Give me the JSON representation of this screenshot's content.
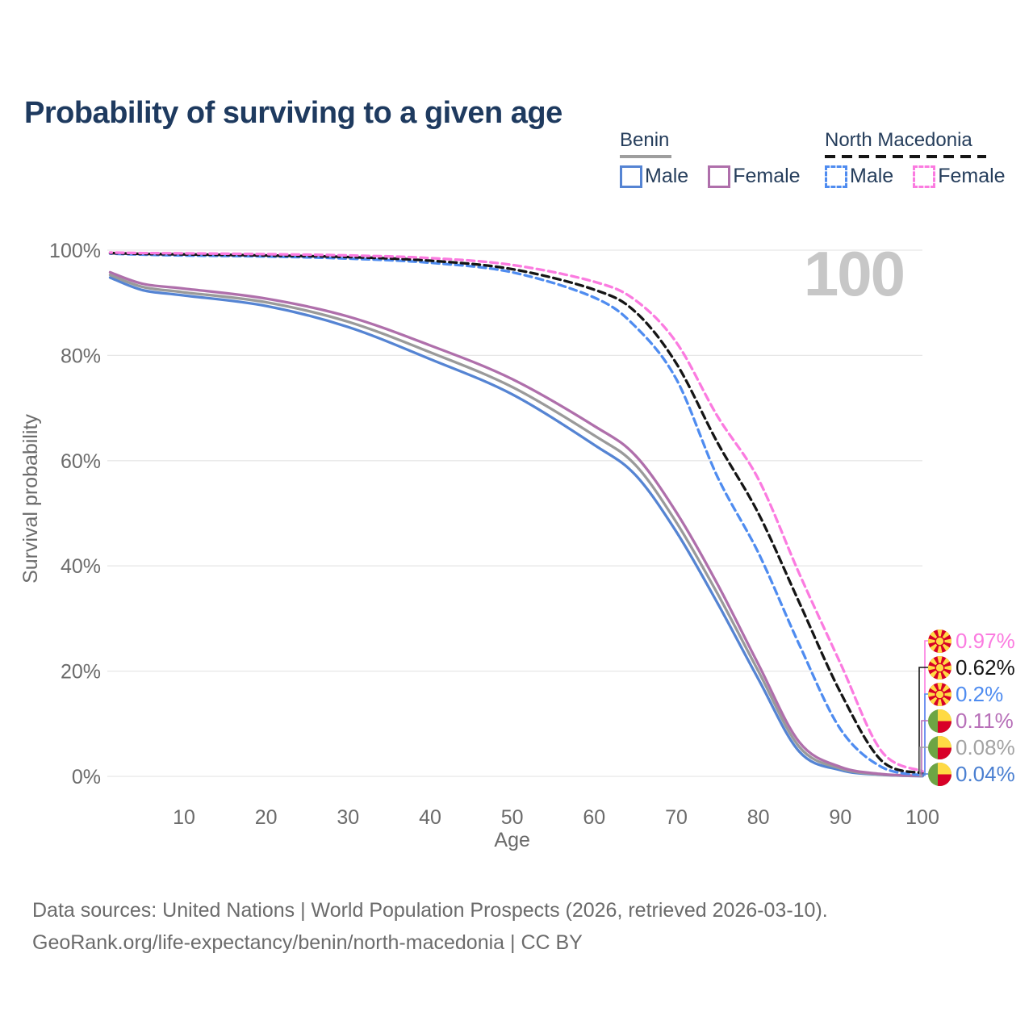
{
  "page": {
    "title": "Probability of surviving to a given age"
  },
  "legend": {
    "groups": [
      {
        "id": "benin",
        "title": "Benin",
        "line_style": "solid",
        "underline_color": "#9e9e9e",
        "items": [
          {
            "label": "Male",
            "color": "#5584d3"
          },
          {
            "label": "Female",
            "color": "#af6fab"
          }
        ]
      },
      {
        "id": "north-macedonia",
        "title": "North Macedonia",
        "line_style": "dashed",
        "underline_color": "#151515",
        "items": [
          {
            "label": "Male",
            "color": "#4f8cf0"
          },
          {
            "label": "Female",
            "color": "#fb7be0"
          }
        ]
      }
    ]
  },
  "chart_data": {
    "type": "line",
    "title": "Probability of surviving to a given age",
    "xlabel": "Age",
    "ylabel": "Survival probability",
    "xlim": [
      0,
      110
    ],
    "ylim": [
      0,
      100
    ],
    "grid": "horizontal",
    "watermark": "100",
    "x_ticks": [
      10,
      20,
      30,
      40,
      50,
      60,
      70,
      80,
      90,
      100
    ],
    "y_ticks": [
      {
        "value": 0,
        "label": "0%"
      },
      {
        "value": 20,
        "label": "20%"
      },
      {
        "value": 40,
        "label": "40%"
      },
      {
        "value": 60,
        "label": "60%"
      },
      {
        "value": 80,
        "label": "80%"
      },
      {
        "value": 100,
        "label": "100%"
      }
    ],
    "ages": [
      1,
      5,
      10,
      20,
      30,
      40,
      50,
      60,
      65,
      70,
      75,
      80,
      85,
      90,
      95,
      100
    ],
    "series": [
      {
        "name": "Benin Male",
        "country": "Benin",
        "sex": "Male",
        "style": "solid",
        "color": "#5584d3",
        "values": [
          94.8,
          92.4,
          91.4,
          89.4,
          85.4,
          79.3,
          72.6,
          63.0,
          57.3,
          46.5,
          33.0,
          18.5,
          4.7,
          1.2,
          0.3,
          0.04
        ]
      },
      {
        "name": "Benin Both sexes",
        "country": "Benin",
        "sex": "Both",
        "style": "solid",
        "color": "#9a9a9a",
        "values": [
          95.3,
          93.0,
          92.0,
          90.1,
          86.4,
          80.6,
          74.0,
          64.8,
          59.2,
          48.3,
          34.8,
          20.0,
          5.6,
          1.5,
          0.36,
          0.08
        ]
      },
      {
        "name": "Benin Female",
        "country": "Benin",
        "sex": "Female",
        "style": "solid",
        "color": "#af6fab",
        "values": [
          95.8,
          93.6,
          92.7,
          90.8,
          87.4,
          81.9,
          75.5,
          66.6,
          61.0,
          50.2,
          36.6,
          21.3,
          6.5,
          1.8,
          0.45,
          0.11
        ]
      },
      {
        "name": "North Macedonia Male",
        "country": "North Macedonia",
        "sex": "Male",
        "style": "dashed",
        "color": "#4f8cf0",
        "values": [
          99.35,
          99.15,
          99.0,
          98.8,
          98.4,
          97.6,
          95.8,
          91.0,
          85.5,
          75.5,
          57.0,
          42.5,
          25.0,
          9.0,
          1.8,
          0.2
        ]
      },
      {
        "name": "North Macedonia Both sexes",
        "country": "North Macedonia",
        "sex": "Both",
        "style": "dashed",
        "color": "#151515",
        "values": [
          99.45,
          99.3,
          99.2,
          99.0,
          98.7,
          98.0,
          96.4,
          92.5,
          88.3,
          78.5,
          63.5,
          50.0,
          33.0,
          16.0,
          3.0,
          0.62
        ]
      },
      {
        "name": "North Macedonia Female",
        "country": "North Macedonia",
        "sex": "Female",
        "style": "dashed",
        "color": "#fb7be0",
        "values": [
          99.55,
          99.45,
          99.4,
          99.25,
          99.0,
          98.5,
          97.2,
          94.0,
          90.5,
          82.5,
          68.5,
          56.5,
          38.5,
          21.5,
          4.8,
          0.97
        ]
      }
    ],
    "end_labels": [
      {
        "flag": "north-macedonia-flag-icon",
        "series": "North Macedonia Female",
        "value": "0.97%",
        "end_value": 0.97,
        "color": "#fb7be0"
      },
      {
        "flag": "north-macedonia-flag-icon",
        "series": "North Macedonia Both sexes",
        "value": "0.62%",
        "end_value": 0.62,
        "color": "#151515"
      },
      {
        "flag": "north-macedonia-flag-icon",
        "series": "North Macedonia Male",
        "value": "0.2%",
        "end_value": 0.2,
        "color": "#4f8cf0"
      },
      {
        "flag": "benin-flag-icon",
        "series": "Benin Female",
        "value": "0.11%",
        "end_value": 0.11,
        "color": "#b76fb8"
      },
      {
        "flag": "benin-flag-icon",
        "series": "Benin Both sexes",
        "value": "0.08%",
        "end_value": 0.08,
        "color": "#a3a3a3"
      },
      {
        "flag": "benin-flag-icon",
        "series": "Benin Male",
        "value": "0.04%",
        "end_value": 0.04,
        "color": "#4a7fd1"
      }
    ]
  },
  "footer": {
    "line1": "Data sources: United Nations | World Population Prospects (2026, retrieved 2026-03-10).",
    "line2": "GeoRank.org/life-expectancy/benin/north-macedonia | CC BY"
  }
}
